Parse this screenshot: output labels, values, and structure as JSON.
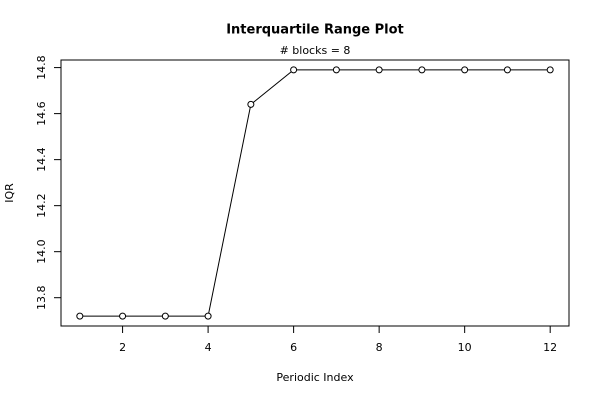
{
  "chart_data": {
    "type": "line",
    "title": "Interquartile Range Plot",
    "subtitle": "# blocks =  8",
    "x_label": "Periodic Index",
    "y_label": "IQR",
    "x": [
      1,
      2,
      3,
      4,
      5,
      6,
      7,
      8,
      9,
      10,
      11,
      12
    ],
    "series": [
      {
        "color": "#000000",
        "values": [
          13.72,
          13.72,
          13.72,
          13.72,
          14.64,
          14.79,
          14.79,
          14.79,
          14.79,
          14.79,
          14.79,
          14.79
        ]
      }
    ],
    "xlim": [
      0.56,
      12.44
    ],
    "xticks": [
      2,
      4,
      6,
      8,
      10,
      12
    ],
    "ylim": [
      13.677,
      14.833
    ],
    "yticks": [
      {
        "value": 13.8,
        "label": "13.8"
      },
      {
        "value": 14.0,
        "label": "14.0"
      },
      {
        "value": 14.2,
        "label": "14.2"
      },
      {
        "value": 14.4,
        "label": "14.4"
      },
      {
        "value": 14.6,
        "label": "14.6"
      },
      {
        "value": 14.8,
        "label": "14.8"
      }
    ]
  }
}
